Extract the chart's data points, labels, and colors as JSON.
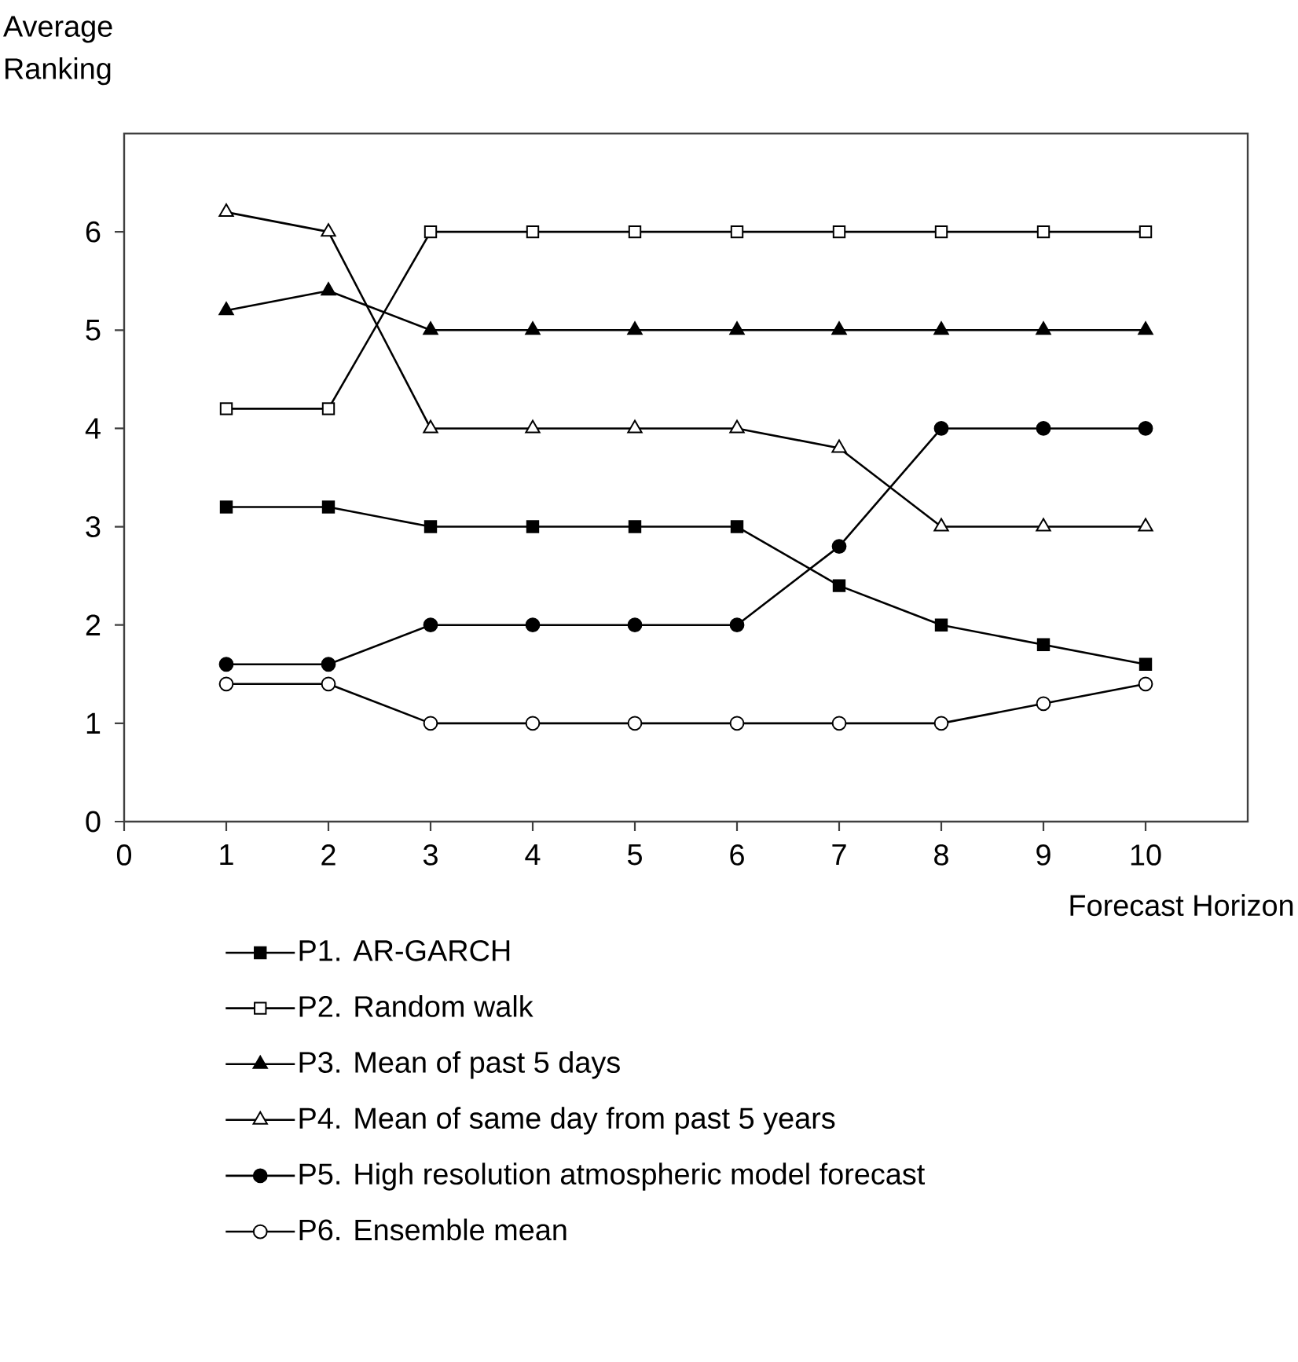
{
  "chart_data": {
    "type": "line",
    "xlabel": "Forecast Horizon",
    "ylabel": "Average Ranking",
    "x": [
      1,
      2,
      3,
      4,
      5,
      6,
      7,
      8,
      9,
      10
    ],
    "xlim": [
      0,
      11
    ],
    "xticks": [
      0,
      1,
      2,
      3,
      4,
      5,
      6,
      7,
      8,
      9,
      10
    ],
    "ylim": [
      0,
      7
    ],
    "yticks": [
      0,
      1,
      2,
      3,
      4,
      5,
      6
    ],
    "grid": false,
    "legend": "bottom",
    "line_style": "solid",
    "series": [
      {
        "name": "P1. AR-GARCH",
        "color": "#000000",
        "marker": "square",
        "colors": [
          "#000000",
          "#000000",
          "#000000",
          "#000000",
          "#000000",
          "#000000",
          "#000000",
          "#000000",
          "#000000",
          "#000000"
        ],
        "values": [
          3.2,
          3.2,
          3,
          3,
          3,
          3,
          2.4,
          2,
          1.8,
          1.6
        ]
      },
      {
        "name": "P2. Random walk",
        "color": "#000000",
        "marker": "square",
        "colors": [
          "#ffffff",
          "#ffffff",
          "#ffffff",
          "#ffffff",
          "#ffffff",
          "#ffffff",
          "#ffffff",
          "#ffffff",
          "#ffffff",
          "#ffffff"
        ],
        "values": [
          4.2,
          4.2,
          6,
          6,
          6,
          6,
          6,
          6,
          6,
          6
        ]
      },
      {
        "name": "P3. Mean of past 5 days",
        "color": "#000000",
        "marker": "triangle",
        "colors": [
          "#000000",
          "#000000",
          "#000000",
          "#000000",
          "#000000",
          "#000000",
          "#000000",
          "#000000",
          "#000000",
          "#000000"
        ],
        "values": [
          5.2,
          5.4,
          5,
          5,
          5,
          5,
          5,
          5,
          5,
          5
        ]
      },
      {
        "name": "P4. Mean of same day from past 5 years",
        "color": "#000000",
        "marker": "triangle",
        "colors": [
          "#ffffff",
          "#ffffff",
          "#ffffff",
          "#ffffff",
          "#ffffff",
          "#ffffff",
          "#ffffff",
          "#ffffff",
          "#ffffff",
          "#ffffff"
        ],
        "values": [
          6.2,
          6,
          4,
          4,
          4,
          4,
          3.8,
          3,
          3,
          3
        ]
      },
      {
        "name": "P5. High resolution atmospheric model forecast",
        "color": "#000000",
        "marker": "circle",
        "colors": [
          "#000000",
          "#000000",
          "#000000",
          "#000000",
          "#000000",
          "#000000",
          "#000000",
          "#000000",
          "#000000",
          "#000000"
        ],
        "values": [
          1.6,
          1.6,
          2,
          2,
          2,
          2,
          2.8,
          4,
          4,
          4
        ]
      },
      {
        "name": "P6. Ensemble mean",
        "color": "#000000",
        "marker": "circle",
        "colors": [
          "#ffffff",
          "#ffffff",
          "#ffffff",
          "#ffffff",
          "#ffffff",
          "#ffffff",
          "#ffffff",
          "#ffffff",
          "#ffffff",
          "#ffffff"
        ],
        "values": [
          1.4,
          1.4,
          1,
          1,
          1,
          1,
          1,
          1,
          1.2,
          1.4
        ]
      }
    ]
  }
}
